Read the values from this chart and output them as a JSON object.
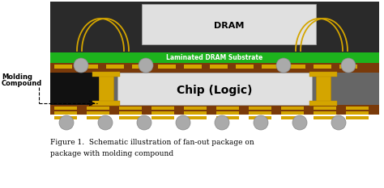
{
  "title_line1": "Figure 1.  Schematic illustration of fan-out package on",
  "title_line2": "package with molding compound",
  "dram_label": "DRAM",
  "substrate_label": "Laminated DRAM Substrate",
  "chip_label": "Chip (Logic)",
  "molding_label1": "Molding",
  "molding_label2": "Compound",
  "bg_color": "#ffffff",
  "dark_upper_bg": "#2a2a2a",
  "dark_lower_bg": "#555555",
  "green_substrate": "#1db31d",
  "brown_pcb": "#7a3a0a",
  "gold_color": "#d4a500",
  "chip_color": "#e0e0e0",
  "dram_color": "#e0e0e0",
  "gray_balls": "#aaaaaa",
  "gray_balls_dark": "#888888",
  "black_fill": "#111111",
  "wire_color": "#d4a500",
  "white": "#ffffff",
  "black": "#000000"
}
